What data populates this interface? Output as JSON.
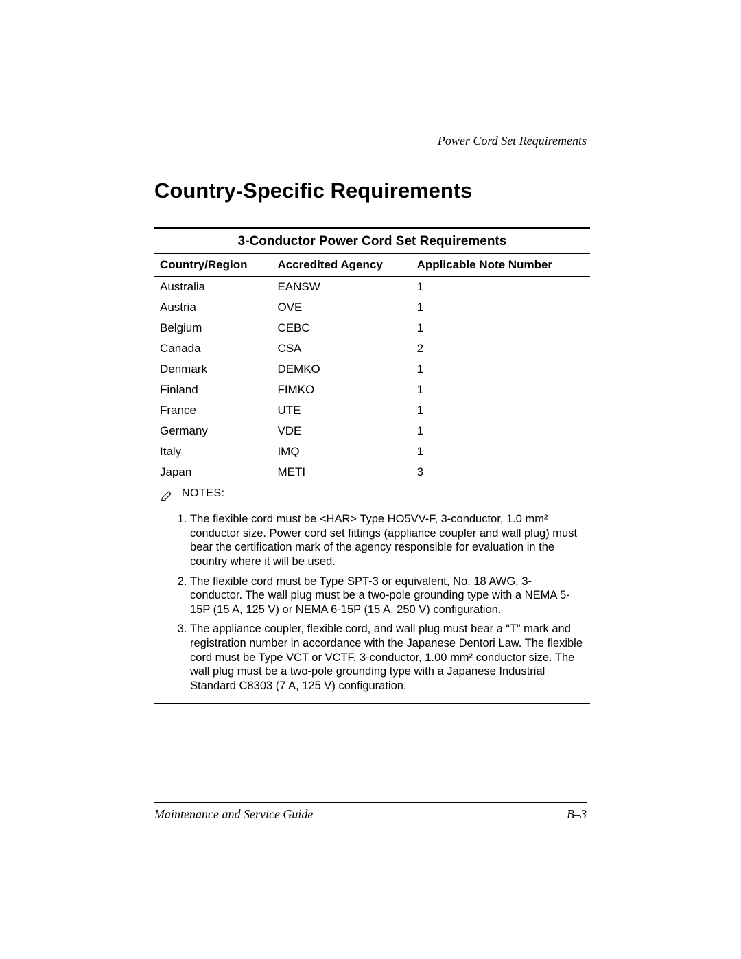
{
  "header": {
    "right": "Power Cord Set Requirements"
  },
  "heading": "Country-Specific Requirements",
  "table": {
    "title": "3-Conductor Power Cord Set Requirements",
    "columns": [
      "Country/Region",
      "Accredited Agency",
      "Applicable Note Number"
    ],
    "rows": [
      [
        "Australia",
        "EANSW",
        "1"
      ],
      [
        "Austria",
        "OVE",
        "1"
      ],
      [
        "Belgium",
        "CEBC",
        "1"
      ],
      [
        "Canada",
        "CSA",
        "2"
      ],
      [
        "Denmark",
        "DEMKO",
        "1"
      ],
      [
        "Finland",
        "FIMKO",
        "1"
      ],
      [
        "France",
        "UTE",
        "1"
      ],
      [
        "Germany",
        "VDE",
        "1"
      ],
      [
        "Italy",
        "IMQ",
        "1"
      ],
      [
        "Japan",
        "METI",
        "3"
      ]
    ],
    "notes_label": "NOTES:",
    "notes": [
      "The flexible cord must be <HAR> Type HO5VV-F, 3-conductor, 1.0 mm² conductor size. Power cord set fittings (appliance coupler and wall plug) must bear the certification mark of the agency responsible for evaluation in the country where it will be used.",
      "The flexible cord must be Type SPT-3 or equivalent, No. 18 AWG, 3-conductor. The wall plug must be a two-pole grounding type with a NEMA 5-15P (15 A, 125 V) or NEMA 6-15P (15 A, 250 V) configuration.",
      "The appliance coupler, flexible cord, and wall plug must bear a “T” mark and registration number in accordance with the Japanese Dentori Law. The flexible cord must be Type VCT or VCTF, 3-conductor, 1.00 mm² conductor size. The wall plug must be a two-pole grounding type with a Japanese Industrial Standard C8303 (7 A, 125 V) configuration."
    ]
  },
  "footer": {
    "left": "Maintenance and Service Guide",
    "right": "B–3"
  },
  "style": {
    "text_color": "#000000",
    "background": "#ffffff",
    "heading_fontsize": 31,
    "body_fontsize": 17,
    "notes_fontsize": 16.5,
    "rule_color": "#000000"
  }
}
